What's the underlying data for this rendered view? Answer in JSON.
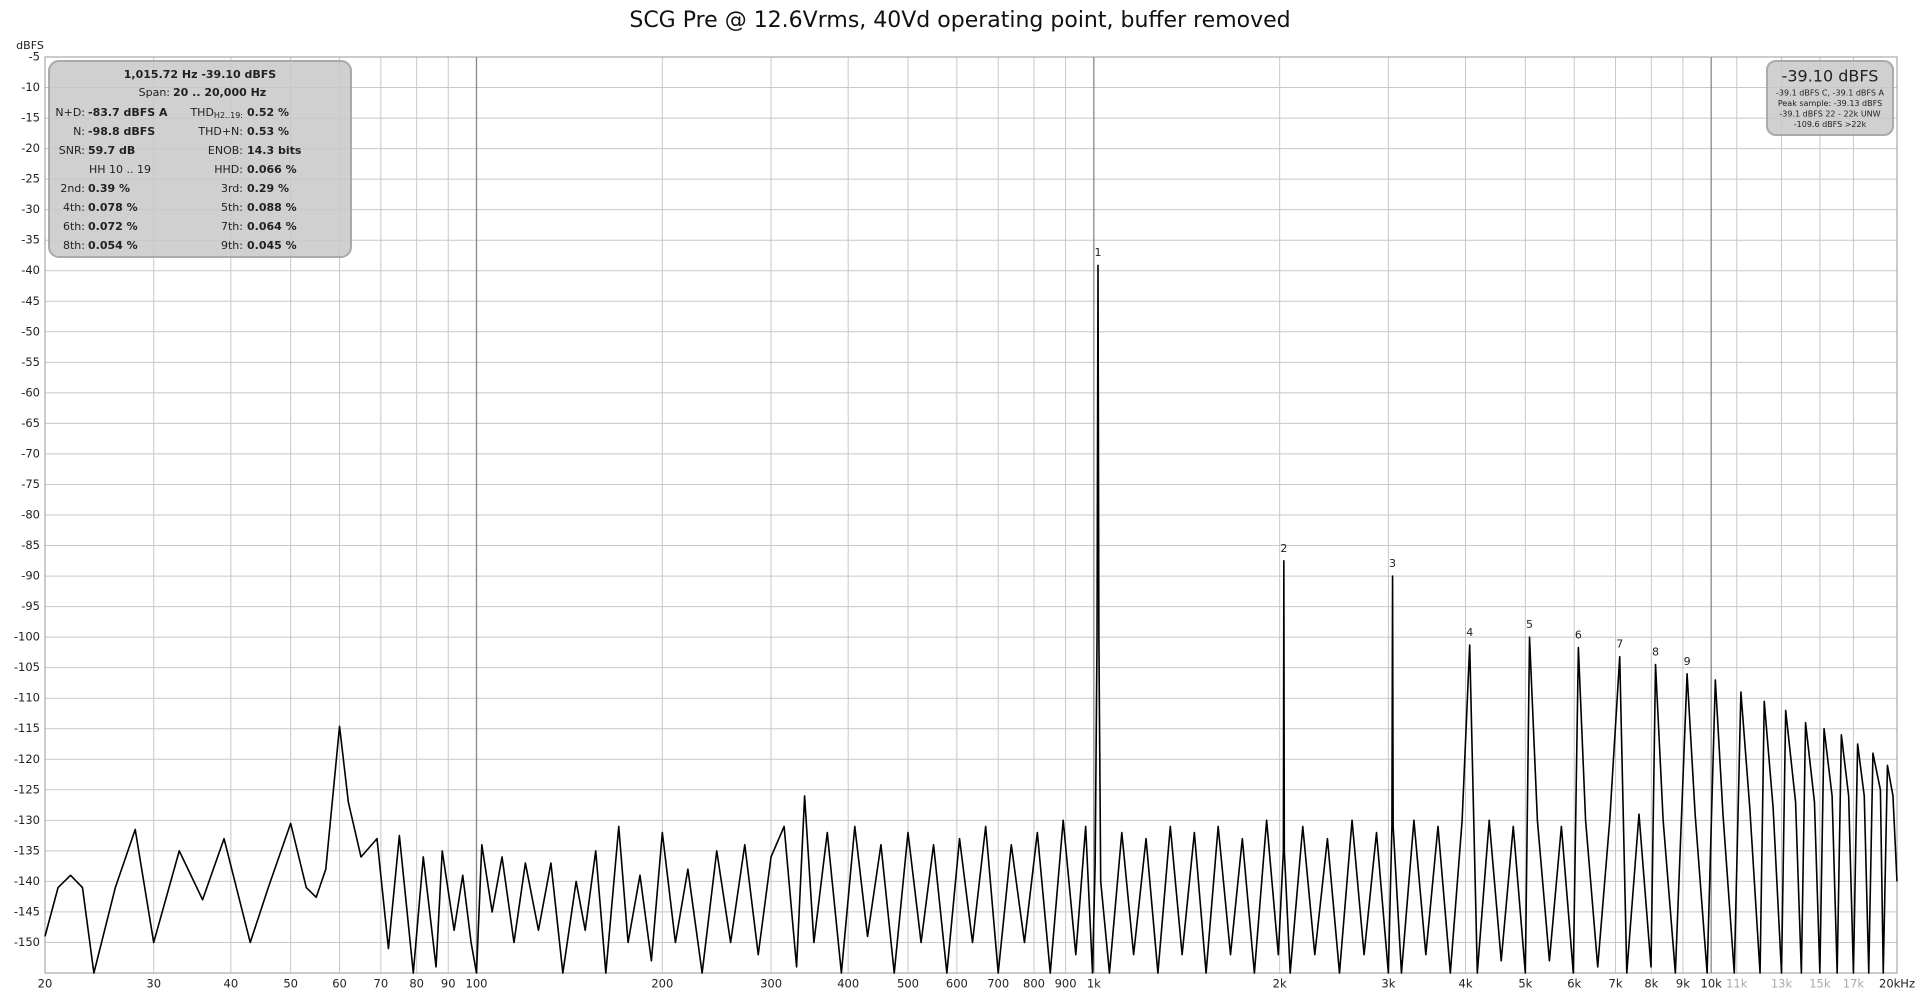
{
  "chart_data": {
    "type": "line",
    "title": "SCG Pre @ 12.6Vrms, 40Vd operating point, buffer removed",
    "y_label": "dBFS",
    "log_x": true,
    "grid": true,
    "color": "#000000",
    "xlim": [
      20,
      20000
    ],
    "ylim": [
      -155,
      -5
    ],
    "xticks": [
      20,
      30,
      40,
      50,
      60,
      70,
      80,
      90,
      100,
      200,
      300,
      400,
      500,
      600,
      700,
      800,
      900,
      {
        "value": 1000,
        "label": "1k"
      },
      {
        "value": 2000,
        "label": "2k"
      },
      {
        "value": 3000,
        "label": "3k"
      },
      {
        "value": 4000,
        "label": "4k"
      },
      {
        "value": 5000,
        "label": "5k"
      },
      {
        "value": 6000,
        "label": "6k"
      },
      {
        "value": 7000,
        "label": "7k"
      },
      {
        "value": 8000,
        "label": "8k"
      },
      {
        "value": 9000,
        "label": "9k"
      },
      {
        "value": 10000,
        "label": "10k"
      },
      {
        "value": 11000,
        "label": "11k"
      },
      {
        "value": 13000,
        "label": "13k"
      },
      {
        "value": 15000,
        "label": "15k"
      },
      {
        "value": 17000,
        "label": "17k"
      },
      {
        "value": 20000,
        "label": "20kHz"
      }
    ],
    "yticks": [
      -5,
      -10,
      -15,
      -20,
      -25,
      -30,
      -35,
      -40,
      -45,
      -50,
      -55,
      -60,
      -65,
      -70,
      -75,
      -80,
      -85,
      -90,
      -95,
      -100,
      -105,
      -110,
      -115,
      -120,
      -125,
      -130,
      -135,
      -140,
      -145,
      -150
    ],
    "x": [
      20,
      21,
      22,
      23,
      24,
      26,
      28,
      30,
      33,
      36,
      39,
      43,
      46,
      50,
      53,
      55,
      57,
      60,
      62,
      65,
      69,
      72,
      75,
      79,
      82,
      86,
      88,
      92,
      95,
      98,
      100,
      102,
      106,
      110,
      115,
      120,
      126,
      132,
      138,
      145,
      150,
      156,
      162,
      170,
      176,
      184,
      192,
      200,
      210,
      220,
      232,
      245,
      258,
      272,
      286,
      300,
      315,
      330,
      340,
      352,
      370,
      390,
      410,
      430,
      452,
      475,
      500,
      525,
      550,
      578,
      606,
      636,
      668,
      700,
      735,
      772,
      810,
      850,
      892,
      935,
      970,
      995,
      1005,
      1012,
      1015.72,
      1019,
      1026,
      1060,
      1110,
      1160,
      1215,
      1270,
      1330,
      1390,
      1455,
      1520,
      1590,
      1665,
      1740,
      1820,
      1905,
      1990,
      2028,
      2031.4,
      2035,
      2080,
      2180,
      2280,
      2390,
      2500,
      2620,
      2740,
      2870,
      3000,
      3040,
      3047.2,
      3054,
      3150,
      3300,
      3450,
      3610,
      3780,
      3950,
      4063,
      4180,
      4370,
      4570,
      4780,
      5000,
      5079,
      5230,
      5470,
      5720,
      5980,
      6094,
      6260,
      6550,
      6850,
      7110,
      7300,
      7640,
      7990,
      8126,
      8360,
      8750,
      9141,
      9420,
      9850,
      10157,
      10450,
      10900,
      11173,
      11550,
      12000,
      12189,
      12600,
      13000,
      13204,
      13700,
      14000,
      14220,
      14700,
      15000,
      15236,
      15700,
      16000,
      16252,
      16700,
      17000,
      17268,
      17700,
      18000,
      18283,
      18800,
      19000,
      19299,
      19700,
      20000
    ],
    "values": [
      -149,
      -141,
      -139,
      -141,
      -155,
      -141,
      -131.5,
      -150,
      -135,
      -143,
      -133,
      -150,
      -141,
      -130.5,
      -141,
      -142.6,
      -138,
      -114.6,
      -127,
      -136,
      -133,
      -151,
      -132.5,
      -155,
      -136,
      -154,
      -135,
      -148,
      -139,
      -150,
      -155,
      -134,
      -145,
      -136,
      -150,
      -137,
      -148,
      -137,
      -155,
      -140,
      -148,
      -135,
      -155,
      -131,
      -150,
      -139,
      -153,
      -132,
      -150,
      -138,
      -155,
      -135,
      -150,
      -134,
      -152,
      -136,
      -131,
      -154,
      -126,
      -150,
      -132,
      -155,
      -131,
      -149,
      -134,
      -155,
      -132,
      -150,
      -134,
      -155,
      -133,
      -150,
      -131,
      -155,
      -134,
      -150,
      -132,
      -155,
      -130,
      -152,
      -131,
      -155,
      -137,
      -100,
      -39.1,
      -100,
      -140,
      -155,
      -132,
      -152,
      -133,
      -155,
      -131,
      -152,
      -132,
      -155,
      -131,
      -152,
      -133,
      -155,
      -130,
      -152,
      -135,
      -87.5,
      -135,
      -155,
      -131,
      -152,
      -133,
      -155,
      -130,
      -152,
      -132,
      -155,
      -131,
      -90,
      -131,
      -155,
      -130,
      -152,
      -131,
      -155,
      -130,
      -101.3,
      -155,
      -130,
      -153,
      -131,
      -155,
      -100,
      -130,
      -153,
      -131,
      -155,
      -101.7,
      -130,
      -154,
      -130,
      -103.2,
      -155,
      -129,
      -154,
      -104.5,
      -130,
      -155,
      -106,
      -129,
      -155,
      -107,
      -129,
      -155,
      -109,
      -128,
      -155,
      -110.5,
      -128,
      -155,
      -112,
      -127,
      -155,
      -114,
      -127,
      -155,
      -115,
      -126,
      -155,
      -116,
      -126,
      -155,
      -117.5,
      -126,
      -155,
      -119,
      -125,
      -155,
      -121,
      -126,
      -140
    ],
    "markers": [
      {
        "label": "1",
        "x": 1015.72,
        "y": -39.1
      },
      {
        "label": "2",
        "x": 2031.4,
        "y": -87.5
      },
      {
        "label": "3",
        "x": 3047.2,
        "y": -90
      },
      {
        "label": "4",
        "x": 4063,
        "y": -101.3
      },
      {
        "label": "5",
        "x": 5079,
        "y": -100
      },
      {
        "label": "6",
        "x": 6094,
        "y": -101.7
      },
      {
        "label": "7",
        "x": 7110,
        "y": -103.2
      },
      {
        "label": "8",
        "x": 8126,
        "y": -104.5
      },
      {
        "label": "9",
        "x": 9141,
        "y": -106
      }
    ],
    "info_panel": {
      "header": "1,015.72 Hz  -39.10 dBFS",
      "span_label": "Span:",
      "span_value": "20 .. 20,000 Hz",
      "thd_subscript": "H2..19:",
      "rows": [
        [
          "N+D:",
          "-83.7 dBFS A",
          "THD",
          "0.52 %"
        ],
        [
          "N:",
          "-98.8 dBFS",
          "THD+N:",
          "0.53 %"
        ],
        [
          "SNR:",
          "59.7 dB",
          "ENOB:",
          "14.3 bits"
        ],
        [
          "HH 10 .. 19",
          null,
          "HHD:",
          "0.066 %"
        ],
        [
          "2nd:",
          "0.39 %",
          "3rd:",
          "0.29 %"
        ],
        [
          "4th:",
          "0.078 %",
          "5th:",
          "0.088 %"
        ],
        [
          "6th:",
          "0.072 %",
          "7th:",
          "0.064 %"
        ],
        [
          "8th:",
          "0.054 %",
          "9th:",
          "0.045 %"
        ]
      ]
    },
    "level_panel": {
      "main": "-39.10 dBFS",
      "lines": [
        "-39.1 dBFS C, -39.1 dBFS A",
        "Peak sample: -39.13 dBFS",
        "-39.1 dBFS 22 - 22k UNW",
        "-109.6 dBFS >22k"
      ]
    }
  }
}
